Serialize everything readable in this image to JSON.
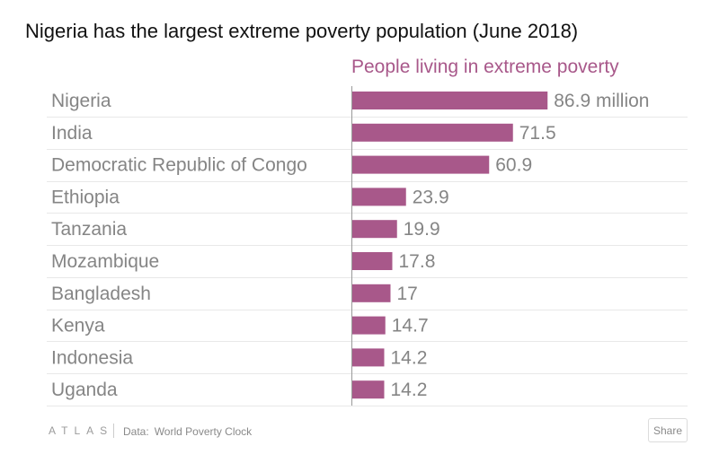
{
  "colors": {
    "bar": "#a8588a",
    "header": "#a8588a",
    "category_label": "#858585",
    "value_label": "#858585",
    "gridline": "#e8e8e8",
    "axis": "#9a9a9a"
  },
  "chart_data": {
    "type": "bar",
    "orientation": "horizontal",
    "title": "Nigeria has the largest extreme poverty population (June 2018)",
    "series_header": "People living in extreme poverty",
    "categories": [
      "Nigeria",
      "India",
      "Democratic Republic of Congo",
      "Ethiopia",
      "Tanzania",
      "Mozambique",
      "Bangladesh",
      "Kenya",
      "Indonesia",
      "Uganda"
    ],
    "values": [
      86.9,
      71.5,
      60.9,
      23.9,
      19.9,
      17.8,
      17,
      14.7,
      14.2,
      14.2
    ],
    "value_labels": [
      "86.9 million",
      "71.5",
      "60.9",
      "23.9",
      "19.9",
      "17.8",
      "17",
      "14.7",
      "14.2",
      "14.2"
    ],
    "xlim": [
      0,
      100
    ],
    "grid": true
  },
  "footer": {
    "logo": "ATLAS",
    "source_label": "Data:",
    "source": "World Poverty Clock",
    "share_label": "Share"
  }
}
